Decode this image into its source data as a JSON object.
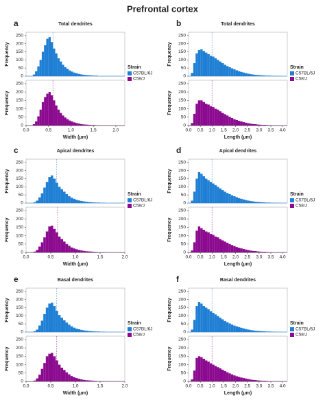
{
  "title": "Prefrontal cortex",
  "legend_title": "Strain",
  "chart_data": [
    {
      "type": "histogram",
      "label": "a",
      "title": "Total dendrites",
      "xlabel": "Width (μm)",
      "ylabel": "Frequency",
      "bins": [
        0.15,
        0.2,
        0.25,
        0.3,
        0.35,
        0.4,
        0.45,
        0.5,
        0.55,
        0.6,
        0.65,
        0.7,
        0.75,
        0.8,
        0.85,
        0.9,
        0.95,
        1.0,
        1.05,
        1.1,
        1.15,
        1.2,
        1.25,
        1.3,
        1.35,
        1.4,
        1.45,
        1.5,
        1.55,
        1.6
      ],
      "xlim": [
        0,
        2.2
      ],
      "xticks": [
        {
          "value": 0,
          "label": "0.0"
        },
        {
          "value": 0.5,
          "label": "0.5"
        },
        {
          "value": 1,
          "label": "1.0"
        },
        {
          "value": 1.5,
          "label": "1.5"
        },
        {
          "value": 2,
          "label": "2.0"
        }
      ],
      "ylim": [
        0,
        270
      ],
      "yticks": [
        0,
        50,
        100,
        150,
        200,
        250
      ],
      "series": [
        {
          "name": "C57BL/6J",
          "color": "#1f7fd4",
          "mean": 0.6,
          "values": [
            10,
            30,
            60,
            100,
            150,
            190,
            230,
            240,
            210,
            170,
            140,
            110,
            90,
            70,
            55,
            45,
            35,
            28,
            22,
            18,
            14,
            11,
            9,
            7,
            6,
            5,
            4,
            3,
            3
          ]
        },
        {
          "name": "C58/J",
          "color": "#8b0a8f",
          "mean": 0.6,
          "values": [
            8,
            25,
            55,
            95,
            140,
            170,
            190,
            200,
            180,
            150,
            120,
            95,
            75,
            60,
            48,
            38,
            30,
            24,
            19,
            15,
            12,
            9,
            7,
            6,
            5,
            4,
            3,
            3,
            2
          ]
        }
      ]
    },
    {
      "type": "histogram",
      "label": "b",
      "title": "Total dendrites",
      "xlabel": "Length (μm)",
      "ylabel": "Frequency",
      "bins": [
        0.1,
        0.2,
        0.3,
        0.4,
        0.5,
        0.6,
        0.7,
        0.8,
        0.9,
        1.0,
        1.1,
        1.2,
        1.3,
        1.4,
        1.5,
        1.6,
        1.7,
        1.8,
        1.9,
        2.0,
        2.1,
        2.2,
        2.3,
        2.4,
        2.5,
        2.6,
        2.7,
        2.8,
        2.9,
        3.0,
        3.1,
        3.2,
        3.3,
        3.4,
        3.5,
        3.6,
        3.7,
        3.8,
        3.9,
        4.0
      ],
      "xlim": [
        0,
        4.2
      ],
      "xticks": [
        {
          "value": 0,
          "label": "0.0"
        },
        {
          "value": 0.5,
          "label": "0.5"
        },
        {
          "value": 1,
          "label": "1.0"
        },
        {
          "value": 1.5,
          "label": "1.5"
        },
        {
          "value": 2,
          "label": "2.0"
        },
        {
          "value": 2.5,
          "label": "2.5"
        },
        {
          "value": 3,
          "label": "3.0"
        },
        {
          "value": 3.5,
          "label": "3.5"
        },
        {
          "value": 4,
          "label": "4.0"
        }
      ],
      "ylim": [
        0,
        270
      ],
      "yticks": [
        0,
        50,
        100,
        150,
        200,
        250
      ],
      "series": [
        {
          "name": "C57BL/6J",
          "color": "#1f7fd4",
          "mean": 1.0,
          "values": [
            20,
            80,
            140,
            160,
            165,
            155,
            145,
            135,
            125,
            120,
            110,
            100,
            90,
            80,
            70,
            62,
            55,
            48,
            42,
            36,
            30,
            26,
            22,
            18,
            15,
            12,
            10,
            8,
            7,
            6,
            5,
            4,
            3,
            3,
            2,
            2,
            1,
            1,
            1
          ]
        },
        {
          "name": "C58/J",
          "color": "#8b0a8f",
          "mean": 1.0,
          "values": [
            15,
            70,
            130,
            150,
            150,
            140,
            130,
            125,
            115,
            110,
            100,
            95,
            85,
            75,
            68,
            60,
            52,
            45,
            38,
            33,
            28,
            24,
            20,
            17,
            14,
            11,
            9,
            8,
            6,
            5,
            4,
            4,
            3,
            2,
            2,
            1,
            1,
            1,
            1
          ]
        }
      ]
    },
    {
      "type": "histogram",
      "label": "c",
      "title": "Apical dendrites",
      "xlabel": "Width (μm)",
      "ylabel": "Frequency",
      "bins": [
        0.15,
        0.2,
        0.25,
        0.3,
        0.35,
        0.4,
        0.45,
        0.5,
        0.55,
        0.6,
        0.65,
        0.7,
        0.75,
        0.8,
        0.85,
        0.9,
        0.95,
        1.0,
        1.05,
        1.1,
        1.15,
        1.2,
        1.25,
        1.3,
        1.35,
        1.4,
        1.45,
        1.5,
        1.55,
        1.6
      ],
      "xlim": [
        0,
        2
      ],
      "xticks": [
        {
          "value": 0,
          "label": "0.0"
        },
        {
          "value": 0.5,
          "label": "0.5"
        },
        {
          "value": 1,
          "label": "1.0"
        },
        {
          "value": 1.5,
          "label": "1.5"
        },
        {
          "value": 2,
          "label": "2.0"
        }
      ],
      "ylim": [
        0,
        270
      ],
      "yticks": [
        0,
        50,
        100,
        150,
        200,
        250
      ],
      "series": [
        {
          "name": "C57BL/6J",
          "color": "#1f7fd4",
          "mean": 0.62,
          "values": [
            5,
            15,
            35,
            60,
            95,
            130,
            160,
            170,
            150,
            125,
            100,
            85,
            70,
            55,
            42,
            33,
            26,
            20,
            16,
            13,
            10,
            8,
            6,
            5,
            4,
            3,
            3,
            2,
            2
          ]
        },
        {
          "name": "C58/J",
          "color": "#8b0a8f",
          "mean": 0.64,
          "values": [
            5,
            15,
            35,
            60,
            90,
            125,
            155,
            160,
            140,
            120,
            95,
            80,
            65,
            50,
            40,
            30,
            24,
            19,
            15,
            12,
            9,
            7,
            6,
            5,
            4,
            3,
            2,
            2,
            2
          ]
        }
      ]
    },
    {
      "type": "histogram",
      "label": "d",
      "title": "Apical dendrites",
      "xlabel": "Length (μm)",
      "ylabel": "Frequency",
      "bins": [
        0.1,
        0.2,
        0.3,
        0.4,
        0.5,
        0.6,
        0.7,
        0.8,
        0.9,
        1.0,
        1.1,
        1.2,
        1.3,
        1.4,
        1.5,
        1.6,
        1.7,
        1.8,
        1.9,
        2.0,
        2.1,
        2.2,
        2.3,
        2.4,
        2.5,
        2.6,
        2.7,
        2.8,
        2.9,
        3.0,
        3.1,
        3.2,
        3.3,
        3.4,
        3.5,
        3.6,
        3.7,
        3.8,
        3.9,
        4.0
      ],
      "xlim": [
        0,
        4.2
      ],
      "xticks": [
        {
          "value": 0,
          "label": "0.0"
        },
        {
          "value": 0.5,
          "label": "0.5"
        },
        {
          "value": 1,
          "label": "1.0"
        },
        {
          "value": 1.5,
          "label": "1.5"
        },
        {
          "value": 2,
          "label": "2.0"
        },
        {
          "value": 2.5,
          "label": "2.5"
        },
        {
          "value": 3,
          "label": "3.0"
        },
        {
          "value": 3.5,
          "label": "3.5"
        },
        {
          "value": 4,
          "label": "4.0"
        }
      ],
      "ylim": [
        0,
        270
      ],
      "yticks": [
        0,
        50,
        100,
        150,
        200,
        250
      ],
      "series": [
        {
          "name": "C57BL/6J",
          "color": "#1f7fd4",
          "mean": 1.0,
          "values": [
            15,
            70,
            150,
            190,
            180,
            165,
            150,
            140,
            130,
            120,
            110,
            100,
            90,
            80,
            70,
            62,
            55,
            48,
            42,
            36,
            30,
            26,
            22,
            18,
            15,
            12,
            10,
            8,
            7,
            6,
            5,
            4,
            3,
            3,
            2,
            2,
            1,
            1,
            1
          ]
        },
        {
          "name": "C58/J",
          "color": "#8b0a8f",
          "mean": 1.0,
          "values": [
            12,
            60,
            130,
            155,
            145,
            135,
            125,
            120,
            110,
            105,
            95,
            90,
            80,
            72,
            65,
            58,
            50,
            44,
            38,
            32,
            28,
            24,
            20,
            17,
            14,
            11,
            9,
            8,
            6,
            5,
            4,
            4,
            3,
            2,
            2,
            1,
            1,
            1,
            1
          ]
        }
      ]
    },
    {
      "type": "histogram",
      "label": "e",
      "title": "Basal dendrites",
      "xlabel": "Width (μm)",
      "ylabel": "Frequency",
      "bins": [
        0.15,
        0.2,
        0.25,
        0.3,
        0.35,
        0.4,
        0.45,
        0.5,
        0.55,
        0.6,
        0.65,
        0.7,
        0.75,
        0.8,
        0.85,
        0.9,
        0.95,
        1.0,
        1.05,
        1.1,
        1.15,
        1.2,
        1.25,
        1.3,
        1.35,
        1.4,
        1.45,
        1.5,
        1.55,
        1.6
      ],
      "xlim": [
        0,
        2
      ],
      "xticks": [
        {
          "value": 0,
          "label": "0.0"
        },
        {
          "value": 0.5,
          "label": "0.5"
        },
        {
          "value": 1,
          "label": "1.0"
        },
        {
          "value": 1.5,
          "label": "1.5"
        },
        {
          "value": 2,
          "label": "2.0"
        }
      ],
      "ylim": [
        0,
        270
      ],
      "yticks": [
        0,
        50,
        100,
        150,
        200,
        250
      ],
      "series": [
        {
          "name": "C57BL/6J",
          "color": "#1f7fd4",
          "mean": 0.62,
          "values": [
            5,
            15,
            40,
            70,
            110,
            150,
            175,
            180,
            160,
            130,
            105,
            88,
            72,
            58,
            45,
            35,
            27,
            21,
            17,
            13,
            10,
            8,
            6,
            5,
            4,
            3,
            3,
            2,
            2
          ]
        },
        {
          "name": "C58/J",
          "color": "#8b0a8f",
          "mean": 0.62,
          "values": [
            5,
            18,
            40,
            75,
            110,
            150,
            165,
            170,
            150,
            125,
            100,
            82,
            68,
            54,
            42,
            32,
            25,
            20,
            16,
            12,
            9,
            7,
            6,
            5,
            4,
            3,
            2,
            2,
            2
          ]
        }
      ]
    },
    {
      "type": "histogram",
      "label": "f",
      "title": "Basal dendrites",
      "xlabel": "Length (μm)",
      "ylabel": "Frequency",
      "bins": [
        0.1,
        0.2,
        0.3,
        0.4,
        0.5,
        0.6,
        0.7,
        0.8,
        0.9,
        1.0,
        1.1,
        1.2,
        1.3,
        1.4,
        1.5,
        1.6,
        1.7,
        1.8,
        1.9,
        2.0,
        2.1,
        2.2,
        2.3,
        2.4,
        2.5,
        2.6,
        2.7,
        2.8,
        2.9,
        3.0,
        3.1,
        3.2,
        3.3,
        3.4,
        3.5,
        3.6,
        3.7,
        3.8,
        3.9,
        4.0
      ],
      "xlim": [
        0,
        4.2
      ],
      "xticks": [
        {
          "value": 0,
          "label": "0.0"
        },
        {
          "value": 0.5,
          "label": "0.5"
        },
        {
          "value": 1,
          "label": "1.0"
        },
        {
          "value": 1.5,
          "label": "1.5"
        },
        {
          "value": 2,
          "label": "2.0"
        },
        {
          "value": 2.5,
          "label": "2.5"
        },
        {
          "value": 3,
          "label": "3.0"
        },
        {
          "value": 3.5,
          "label": "3.5"
        },
        {
          "value": 4,
          "label": "4.0"
        }
      ],
      "ylim": [
        0,
        270
      ],
      "yticks": [
        0,
        50,
        100,
        150,
        200,
        250
      ],
      "series": [
        {
          "name": "C57BL/6J",
          "color": "#1f7fd4",
          "mean": 1.0,
          "values": [
            15,
            75,
            160,
            185,
            175,
            160,
            150,
            140,
            128,
            118,
            108,
            98,
            88,
            78,
            68,
            60,
            53,
            46,
            40,
            35,
            30,
            26,
            22,
            18,
            15,
            12,
            10,
            8,
            7,
            6,
            5,
            4,
            3,
            3,
            2,
            2,
            1,
            1,
            1
          ]
        },
        {
          "name": "C58/J",
          "color": "#8b0a8f",
          "mean": 1.0,
          "values": [
            12,
            65,
            140,
            150,
            145,
            135,
            125,
            118,
            108,
            100,
            92,
            85,
            78,
            70,
            62,
            55,
            48,
            42,
            36,
            31,
            27,
            23,
            20,
            17,
            14,
            11,
            9,
            8,
            6,
            5,
            4,
            4,
            3,
            2,
            2,
            1,
            1,
            1,
            1
          ]
        }
      ]
    }
  ]
}
